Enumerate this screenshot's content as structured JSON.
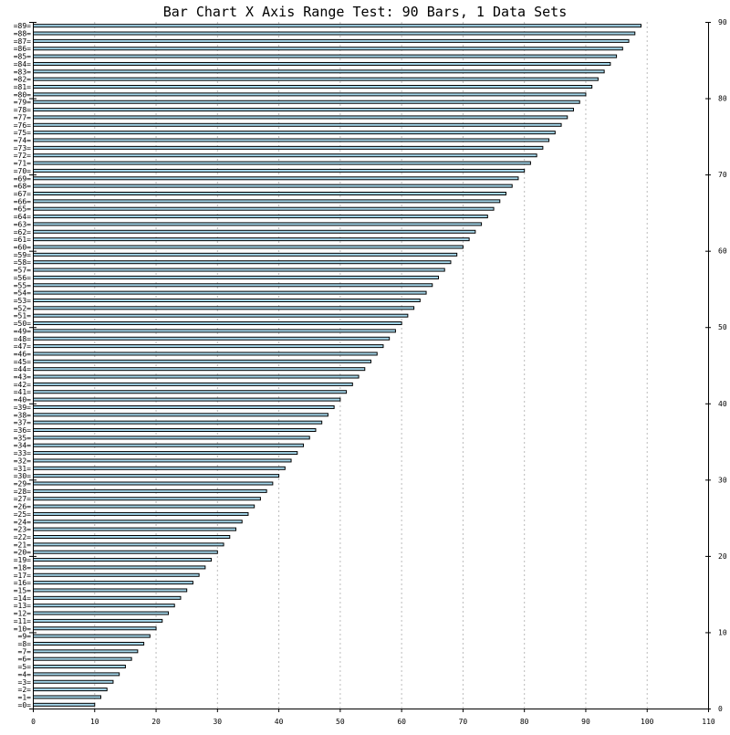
{
  "chart_data": {
    "type": "bar",
    "orientation": "horizontal",
    "title": "Bar Chart X Axis Range Test: 90 Bars, 1 Data Sets",
    "categories": [
      "=0=",
      "=1=",
      "=2=",
      "=3=",
      "=4=",
      "=5=",
      "=6=",
      "=7=",
      "=8=",
      "=9=",
      "=10=",
      "=11=",
      "=12=",
      "=13=",
      "=14=",
      "=15=",
      "=16=",
      "=17=",
      "=18=",
      "=19=",
      "=20=",
      "=21=",
      "=22=",
      "=23=",
      "=24=",
      "=25=",
      "=26=",
      "=27=",
      "=28=",
      "=29=",
      "=30=",
      "=31=",
      "=32=",
      "=33=",
      "=34=",
      "=35=",
      "=36=",
      "=37=",
      "=38=",
      "=39=",
      "=40=",
      "=41=",
      "=42=",
      "=43=",
      "=44=",
      "=45=",
      "=46=",
      "=47=",
      "=48=",
      "=49=",
      "=50=",
      "=51=",
      "=52=",
      "=53=",
      "=54=",
      "=55=",
      "=56=",
      "=57=",
      "=58=",
      "=59=",
      "=60=",
      "=61=",
      "=62=",
      "=63=",
      "=64=",
      "=65=",
      "=66=",
      "=67=",
      "=68=",
      "=69=",
      "=70=",
      "=71=",
      "=72=",
      "=73=",
      "=74=",
      "=75=",
      "=76=",
      "=77=",
      "=78=",
      "=79=",
      "=80=",
      "=81=",
      "=82=",
      "=83=",
      "=84=",
      "=85=",
      "=86=",
      "=87=",
      "=88=",
      "=89="
    ],
    "series": [
      {
        "values": [
          10,
          11,
          12,
          13,
          14,
          15,
          16,
          17,
          18,
          19,
          20,
          21,
          22,
          23,
          24,
          25,
          26,
          27,
          28,
          29,
          30,
          31,
          32,
          33,
          34,
          35,
          36,
          37,
          38,
          39,
          40,
          41,
          42,
          43,
          44,
          45,
          46,
          47,
          48,
          49,
          50,
          51,
          52,
          53,
          54,
          55,
          56,
          57,
          58,
          59,
          60,
          61,
          62,
          63,
          64,
          65,
          66,
          67,
          68,
          69,
          70,
          71,
          72,
          73,
          74,
          75,
          76,
          77,
          78,
          79,
          80,
          81,
          82,
          83,
          84,
          85,
          86,
          87,
          88,
          89,
          90,
          91,
          92,
          93,
          94,
          95,
          96,
          97,
          98,
          99
        ],
        "color": "#a6d8ec"
      }
    ],
    "x_ticks": [
      "0",
      "10",
      "20",
      "30",
      "40",
      "50",
      "60",
      "70",
      "80",
      "90",
      "100",
      "110"
    ],
    "xlim": [
      0,
      110
    ],
    "right_ticks": [
      "0",
      "10",
      "20",
      "30",
      "40",
      "50",
      "60",
      "70",
      "80",
      "90"
    ],
    "right_lim": [
      0,
      90
    ],
    "grid": "vertical-dotted",
    "bar_color": "#a6d8ec",
    "bar_outline": "#000000",
    "grid_color": "#bbbbbb"
  }
}
